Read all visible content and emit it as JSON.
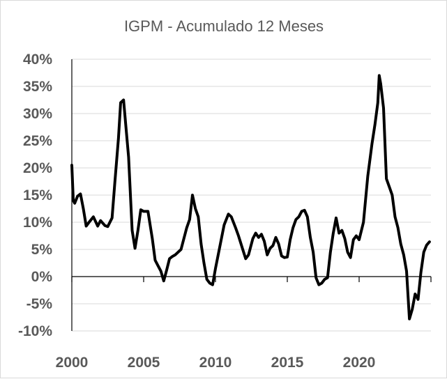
{
  "chart_data": {
    "type": "line",
    "title": "IGPM - Acumulado 12 Meses",
    "xlabel": "",
    "ylabel": "",
    "xlim": [
      2000,
      2025
    ],
    "ylim": [
      -0.1,
      0.4
    ],
    "x_ticks": [
      {
        "value": 2000,
        "label": "2000"
      },
      {
        "value": 2005,
        "label": "2005"
      },
      {
        "value": 2010,
        "label": "2010"
      },
      {
        "value": 2015,
        "label": "2015"
      },
      {
        "value": 2020,
        "label": "2020"
      }
    ],
    "y_ticks": [
      {
        "value": 0.4,
        "label": "40%"
      },
      {
        "value": 0.35,
        "label": "35%"
      },
      {
        "value": 0.3,
        "label": "30%"
      },
      {
        "value": 0.25,
        "label": "25%"
      },
      {
        "value": 0.2,
        "label": "20%"
      },
      {
        "value": 0.15,
        "label": "15%"
      },
      {
        "value": 0.1,
        "label": "10%"
      },
      {
        "value": 0.05,
        "label": "5%"
      },
      {
        "value": 0.0,
        "label": "0%"
      },
      {
        "value": -0.05,
        "label": "-5%"
      },
      {
        "value": -0.1,
        "label": "-10%"
      }
    ],
    "grid": "horizontal",
    "legend": "none",
    "line_color": "#000000",
    "grid_color": "#d9d9d9",
    "series": [
      {
        "x": [
          2000.0,
          2000.1,
          2000.2,
          2000.4,
          2000.6,
          2000.8,
          2001.0,
          2001.2,
          2001.5,
          2001.8,
          2002.0,
          2002.3,
          2002.5,
          2002.8,
          2003.0,
          2003.25,
          2003.4,
          2003.6,
          2003.8,
          2003.95,
          2004.2,
          2004.4,
          2004.6,
          2004.8,
          2005.0,
          2005.3,
          2005.6,
          2005.8,
          2006.0,
          2006.2,
          2006.4,
          2006.6,
          2006.8,
          2007.0,
          2007.2,
          2007.4,
          2007.6,
          2007.8,
          2008.0,
          2008.2,
          2008.4,
          2008.6,
          2008.8,
          2009.0,
          2009.2,
          2009.4,
          2009.6,
          2009.8,
          2010.0,
          2010.3,
          2010.6,
          2010.9,
          2011.1,
          2011.4,
          2011.6,
          2011.9,
          2012.1,
          2012.3,
          2012.6,
          2012.8,
          2013.0,
          2013.2,
          2013.4,
          2013.6,
          2013.8,
          2014.0,
          2014.2,
          2014.4,
          2014.6,
          2014.8,
          2015.0,
          2015.2,
          2015.4,
          2015.6,
          2015.8,
          2016.0,
          2016.2,
          2016.4,
          2016.6,
          2016.8,
          2017.0,
          2017.2,
          2017.4,
          2017.6,
          2017.8,
          2018.0,
          2018.2,
          2018.4,
          2018.6,
          2018.8,
          2019.0,
          2019.2,
          2019.4,
          2019.6,
          2019.8,
          2020.0,
          2020.3,
          2020.6,
          2020.9,
          2021.1,
          2021.3,
          2021.4,
          2021.5,
          2021.7,
          2021.9,
          2022.1,
          2022.3,
          2022.5,
          2022.7,
          2022.9,
          2023.1,
          2023.3,
          2023.5,
          2023.7,
          2023.9,
          2024.1,
          2024.3,
          2024.5,
          2024.7,
          2024.9
        ],
        "y": [
          0.205,
          0.14,
          0.135,
          0.148,
          0.152,
          0.125,
          0.093,
          0.1,
          0.11,
          0.093,
          0.103,
          0.094,
          0.092,
          0.108,
          0.175,
          0.255,
          0.32,
          0.325,
          0.265,
          0.22,
          0.085,
          0.052,
          0.085,
          0.123,
          0.12,
          0.12,
          0.07,
          0.03,
          0.02,
          0.01,
          -0.008,
          0.012,
          0.033,
          0.037,
          0.04,
          0.045,
          0.05,
          0.07,
          0.09,
          0.105,
          0.15,
          0.125,
          0.11,
          0.06,
          0.025,
          -0.005,
          -0.012,
          -0.015,
          0.015,
          0.055,
          0.095,
          0.115,
          0.11,
          0.09,
          0.075,
          0.05,
          0.033,
          0.04,
          0.07,
          0.08,
          0.072,
          0.078,
          0.065,
          0.04,
          0.052,
          0.057,
          0.072,
          0.06,
          0.038,
          0.035,
          0.036,
          0.068,
          0.09,
          0.105,
          0.11,
          0.12,
          0.122,
          0.11,
          0.072,
          0.045,
          -0.002,
          -0.015,
          -0.012,
          -0.005,
          -0.002,
          0.045,
          0.08,
          0.108,
          0.08,
          0.085,
          0.07,
          0.045,
          0.035,
          0.068,
          0.075,
          0.068,
          0.1,
          0.185,
          0.245,
          0.28,
          0.32,
          0.37,
          0.355,
          0.31,
          0.18,
          0.165,
          0.15,
          0.11,
          0.09,
          0.06,
          0.04,
          0.01,
          -0.078,
          -0.06,
          -0.032,
          -0.042,
          0.008,
          0.045,
          0.058,
          0.064
        ]
      }
    ]
  }
}
